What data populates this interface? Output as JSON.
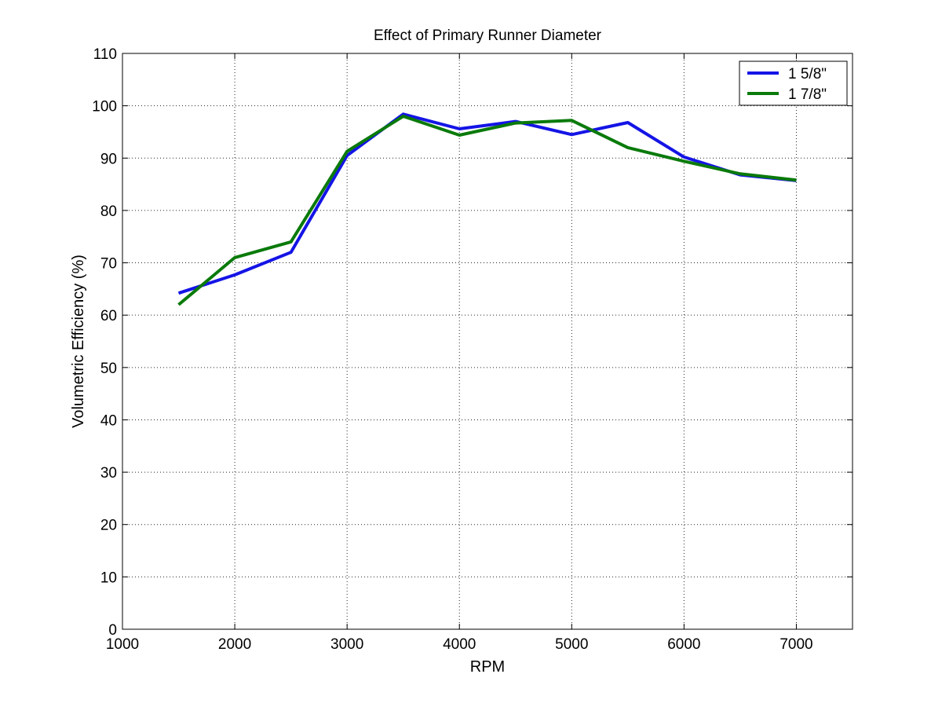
{
  "chart_data": {
    "type": "line",
    "title": "Effect of Primary Runner Diameter",
    "xlabel": "RPM",
    "ylabel": "Volumetric Efficiency (%)",
    "xlim": [
      1000,
      7500
    ],
    "ylim": [
      0,
      110
    ],
    "xticks": [
      1000,
      2000,
      3000,
      4000,
      5000,
      6000,
      7000
    ],
    "yticks": [
      0,
      10,
      20,
      30,
      40,
      50,
      60,
      70,
      80,
      90,
      100,
      110
    ],
    "grid": true,
    "legend_position": "top-right",
    "x": [
      1500,
      2000,
      2500,
      3000,
      3500,
      4000,
      4500,
      5000,
      5500,
      6000,
      6500,
      7000
    ],
    "series": [
      {
        "name": "1 5/8\"",
        "color": "#1414e6",
        "values": [
          64.2,
          67.7,
          72.0,
          90.5,
          98.4,
          95.6,
          97.0,
          94.5,
          96.8,
          90.2,
          86.8,
          85.7
        ]
      },
      {
        "name": "1 7/8\"",
        "color": "#0a7a0a",
        "values": [
          62.0,
          71.0,
          74.0,
          91.3,
          98.0,
          94.4,
          96.7,
          97.2,
          92.0,
          89.4,
          87.0,
          85.8
        ]
      }
    ]
  }
}
